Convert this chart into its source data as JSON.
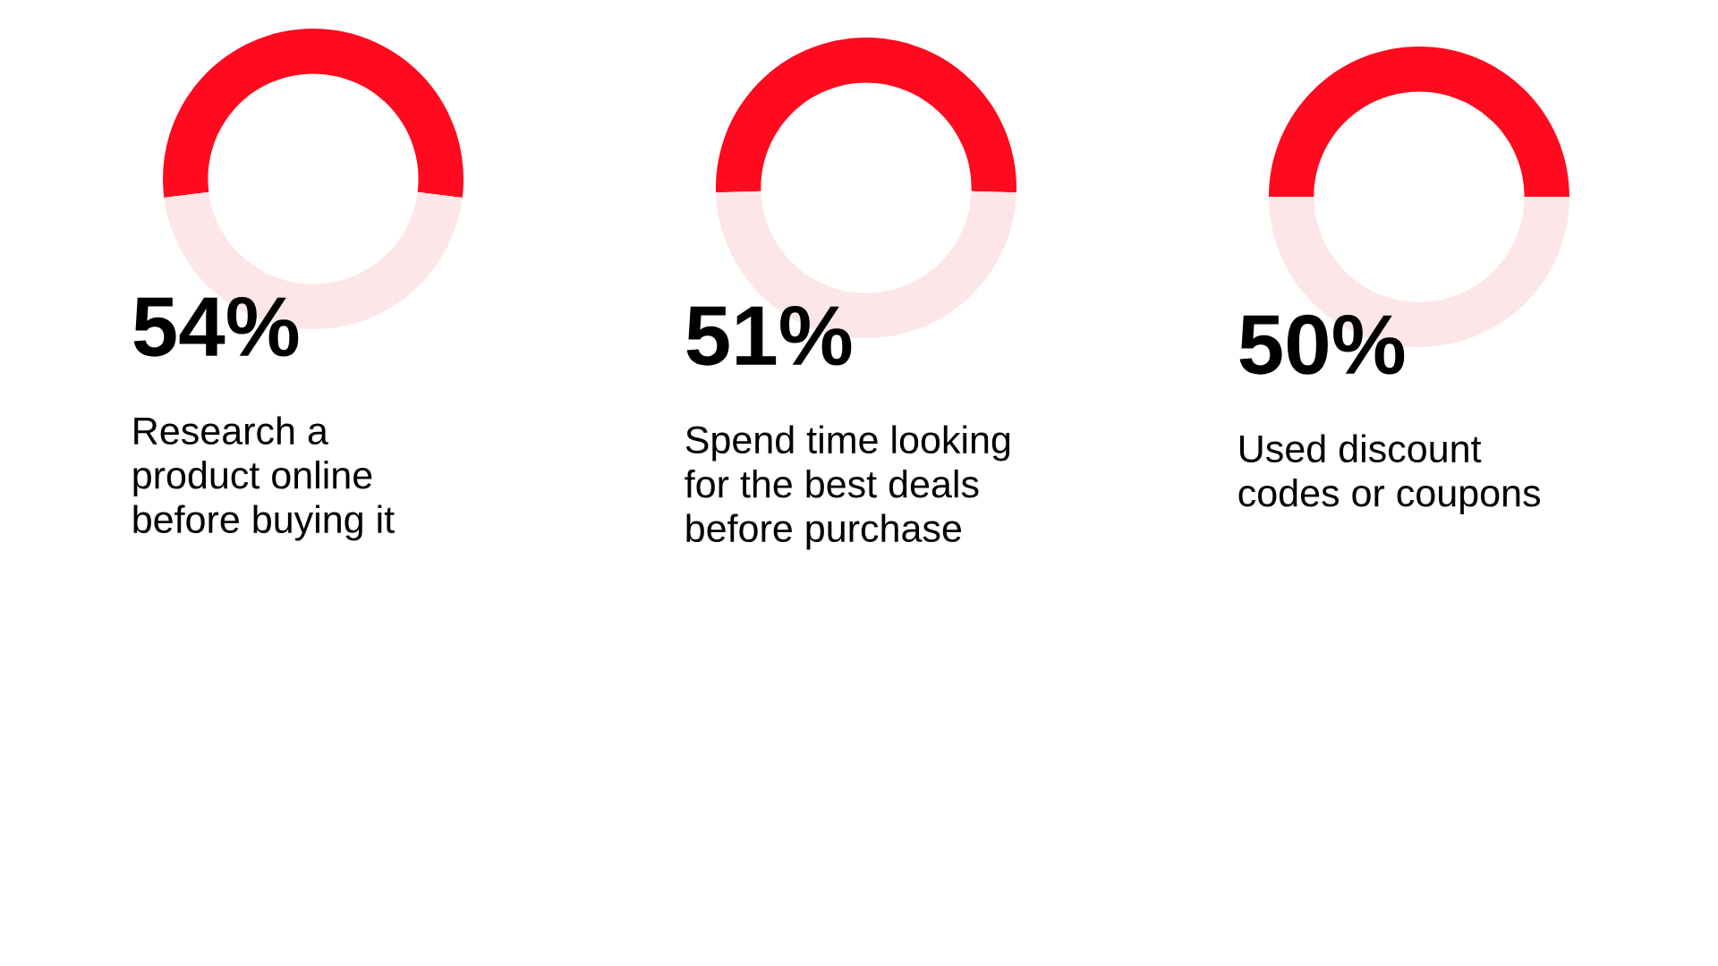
{
  "chart_data": [
    {
      "type": "donut",
      "title": "54%",
      "subtitle": "Research a\nproduct online\nbefore buying it",
      "categories": [
        null,
        null
      ],
      "values": [
        54,
        46
      ],
      "colors": [
        "#ff0a1e",
        "#fde6e8"
      ]
    },
    {
      "type": "donut",
      "title": "51%",
      "subtitle": "Spend time looking\nfor the best deals\nbefore purchase",
      "categories": [
        null,
        null
      ],
      "values": [
        51,
        49
      ],
      "colors": [
        "#ff0a1e",
        "#fde6e8"
      ]
    },
    {
      "type": "donut",
      "title": "50%",
      "subtitle": "Used discount\ncodes or coupons",
      "categories": [
        null,
        null
      ],
      "values": [
        50,
        50
      ],
      "colors": [
        "#ff0a1e",
        "#fde6e8"
      ]
    }
  ]
}
